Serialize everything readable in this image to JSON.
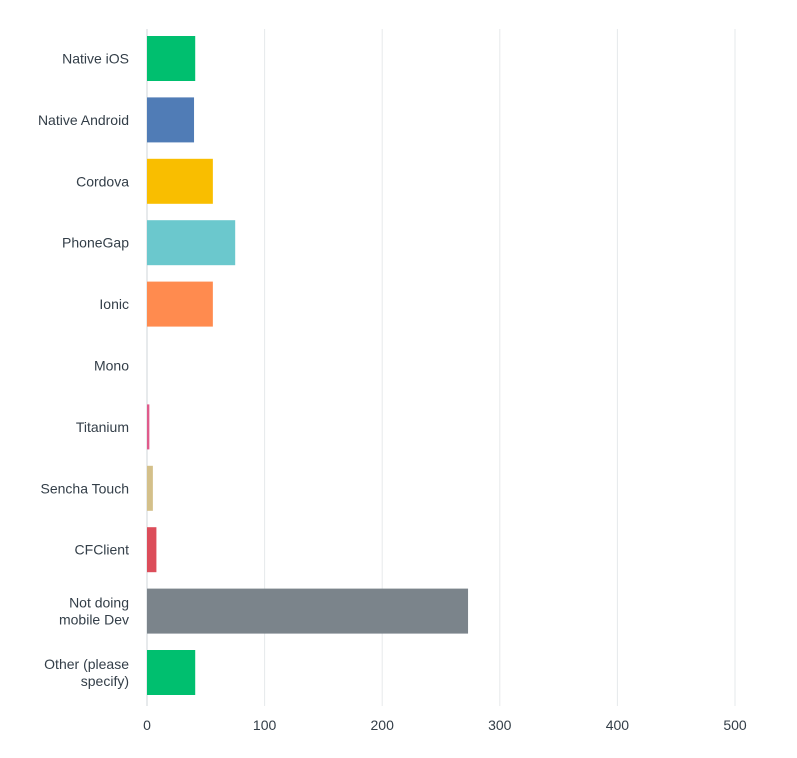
{
  "chart_data": {
    "type": "bar",
    "orientation": "horizontal",
    "categories": [
      [
        "Native iOS"
      ],
      [
        "Native Android"
      ],
      [
        "Cordova"
      ],
      [
        "PhoneGap"
      ],
      [
        "Ionic"
      ],
      [
        "Mono"
      ],
      [
        "Titanium"
      ],
      [
        "Sencha Touch"
      ],
      [
        "CFClient"
      ],
      [
        "Not doing",
        "mobile Dev"
      ],
      [
        "Other (please",
        "specify)"
      ]
    ],
    "values": [
      41,
      40,
      56,
      75,
      56,
      0,
      2,
      5,
      8,
      273,
      41
    ],
    "colors": [
      "#00bf6f",
      "#507cb6",
      "#f9be00",
      "#6bc8cd",
      "#ff8b4f",
      "#7d5ba6",
      "#e05b8b",
      "#d4c08a",
      "#dc4d5a",
      "#7b848b",
      "#00bf6f"
    ],
    "xticks": [
      0,
      100,
      200,
      300,
      400,
      500
    ],
    "xlim": [
      0,
      500
    ],
    "grid": "vertical",
    "legend": "none",
    "title": "",
    "xlabel": "",
    "ylabel": ""
  }
}
